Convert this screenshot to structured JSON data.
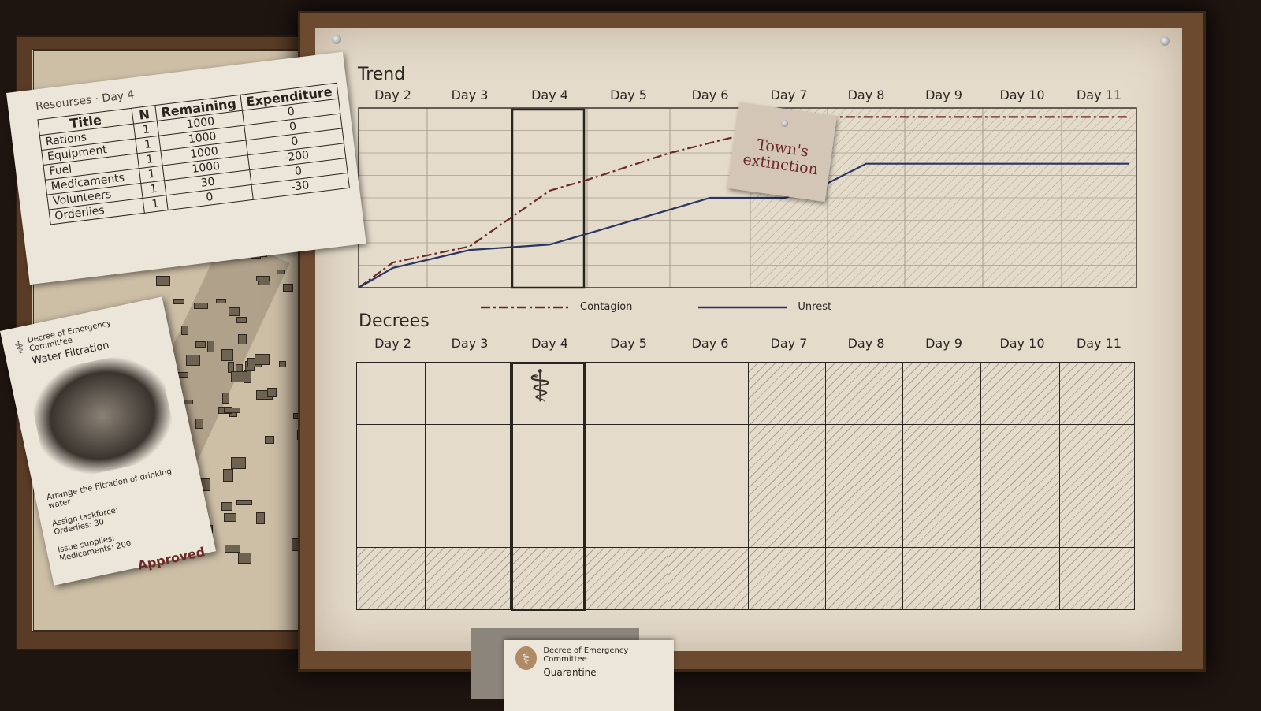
{
  "resources": {
    "title": "Resourses",
    "day": "Day 4",
    "headers": [
      "Title",
      "N",
      "Remaining",
      "Expenditure"
    ],
    "rows": [
      [
        "Rations",
        "1",
        "1000",
        "0"
      ],
      [
        "Equipment",
        "1",
        "1000",
        "0"
      ],
      [
        "Fuel",
        "1",
        "1000",
        "0"
      ],
      [
        "Medicaments",
        "1",
        "1000",
        "-200"
      ],
      [
        "Volunteers",
        "1",
        "30",
        "0"
      ],
      [
        "Orderlies",
        "1",
        "0",
        "-30"
      ]
    ]
  },
  "decree_card": {
    "header": "Decree of Emergency Committee",
    "title": "Water Filtration",
    "description": "Arrange the filtration of drinking water",
    "task_label": "Assign taskforce:",
    "task_item": "Orderlies:",
    "task_value": "30",
    "supply_label": "Issue supplies:",
    "supply_item": "Medicaments:",
    "supply_value": "200",
    "status": "Approved"
  },
  "bottom_card": {
    "header": "Decree of Emergency Committee",
    "title": "Quarantine"
  },
  "trend": {
    "title": "Trend",
    "days": [
      "Day 2",
      "Day 3",
      "Day 4",
      "Day 5",
      "Day 6",
      "Day 7",
      "Day 8",
      "Day 9",
      "Day 10",
      "Day 11"
    ],
    "current_day": "Day 4",
    "future_from": "Day 7",
    "note": "Town's extinction"
  },
  "decrees": {
    "title": "Decrees",
    "days": [
      "Day 2",
      "Day 3",
      "Day 4",
      "Day 5",
      "Day 6",
      "Day 7",
      "Day 8",
      "Day 9",
      "Day 10",
      "Day 11"
    ],
    "rows": 4,
    "decree_icons": [
      {
        "day": "Day 4",
        "slot": 1,
        "icon": "caduceus-icon"
      }
    ]
  },
  "chart_data": {
    "type": "line",
    "title": "Trend",
    "categories": [
      "Day 2",
      "Day 3",
      "Day 4",
      "Day 5",
      "Day 6",
      "Day 7",
      "Day 8",
      "Day 9",
      "Day 10",
      "Day 11"
    ],
    "ylim": [
      0,
      100
    ],
    "grid": true,
    "legend": "bottom",
    "series": [
      {
        "name": "Contagion",
        "color": "#6b2a28",
        "style": "dash-dot",
        "x": [
          1.5,
          2.0,
          2.5,
          3.0,
          4.0,
          4.5,
          5.5,
          6.4,
          7.0,
          11.4
        ],
        "values": [
          0,
          14,
          18,
          23,
          54,
          60,
          75,
          85,
          95,
          95
        ]
      },
      {
        "name": "Unrest",
        "color": "#2a3560",
        "style": "solid",
        "x": [
          1.5,
          2.0,
          3.0,
          4.0,
          4.5,
          6.0,
          6.95,
          7.45,
          8.0,
          11.4
        ],
        "values": [
          0,
          11,
          21,
          24,
          30,
          50,
          50,
          57,
          69,
          69
        ]
      }
    ]
  }
}
